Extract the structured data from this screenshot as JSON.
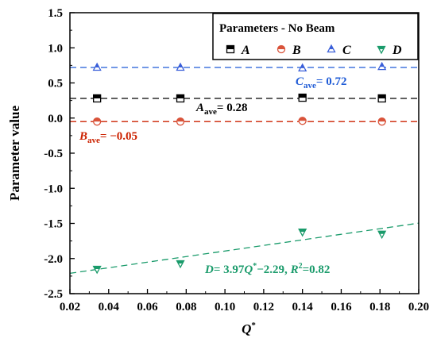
{
  "chart_data": {
    "type": "scatter",
    "xlabel": "Q",
    "xlabel_sup": "*",
    "ylabel": "Parameter value",
    "xlim": [
      0.02,
      0.2
    ],
    "ylim": [
      -2.5,
      1.5
    ],
    "xticks": [
      "0.02",
      "0.04",
      "0.06",
      "0.08",
      "0.10",
      "0.12",
      "0.14",
      "0.16",
      "0.18",
      "0.20"
    ],
    "yticks": [
      "1.5",
      "1.0",
      "0.5",
      "0.0",
      "-0.5",
      "-1.0",
      "-1.5",
      "-2.0",
      "-2.5"
    ],
    "grid": false,
    "legend": {
      "title": "Parameters - No Beam",
      "placement": "top-right"
    },
    "series": [
      {
        "name": "A",
        "marker": "square",
        "color": "#000000",
        "x": [
          0.034,
          0.077,
          0.14,
          0.181
        ],
        "y": [
          0.28,
          0.28,
          0.29,
          0.28
        ]
      },
      {
        "name": "B",
        "marker": "circle",
        "color": "#d9533a",
        "x": [
          0.034,
          0.077,
          0.14,
          0.181
        ],
        "y": [
          -0.05,
          -0.05,
          -0.04,
          -0.05
        ]
      },
      {
        "name": "C",
        "marker": "triangle-up",
        "color": "#3a5fd9",
        "x": [
          0.034,
          0.077,
          0.14,
          0.181
        ],
        "y": [
          0.72,
          0.72,
          0.71,
          0.73
        ]
      },
      {
        "name": "D",
        "marker": "triangle-down",
        "color": "#1a9b6b",
        "x": [
          0.034,
          0.077,
          0.14,
          0.181
        ],
        "y": [
          -2.15,
          -2.07,
          -1.62,
          -1.65
        ]
      }
    ],
    "reference_lines": [
      {
        "series": "A",
        "y": 0.28,
        "color": "#000000"
      },
      {
        "series": "B",
        "y": -0.05,
        "color": "#cc2200"
      },
      {
        "series": "C",
        "y": 0.72,
        "color": "#1f5bd6"
      }
    ],
    "fit_line": {
      "series": "D",
      "slope": 3.97,
      "intercept": -2.29,
      "x": [
        0.02,
        0.2
      ],
      "color": "#1a9b6b"
    },
    "annotations": {
      "c_ave": {
        "sym": "C",
        "sub": "ave",
        "value": "= 0.72",
        "color": "#1f5bd6"
      },
      "a_ave": {
        "sym": "A",
        "sub": "ave",
        "value": "= 0.28",
        "color": "#000000"
      },
      "b_ave": {
        "sym": "B",
        "sub": "ave",
        "value": "= −0.05",
        "color": "#cc2200"
      },
      "d_fit": {
        "p1": "D",
        "p2": "= 3.97",
        "p3": "Q",
        "p4": "*",
        "p5": "−2.29, ",
        "p6": "R",
        "p7": "2",
        "p8": "=0.82",
        "color": "#1a9b6b"
      }
    }
  }
}
